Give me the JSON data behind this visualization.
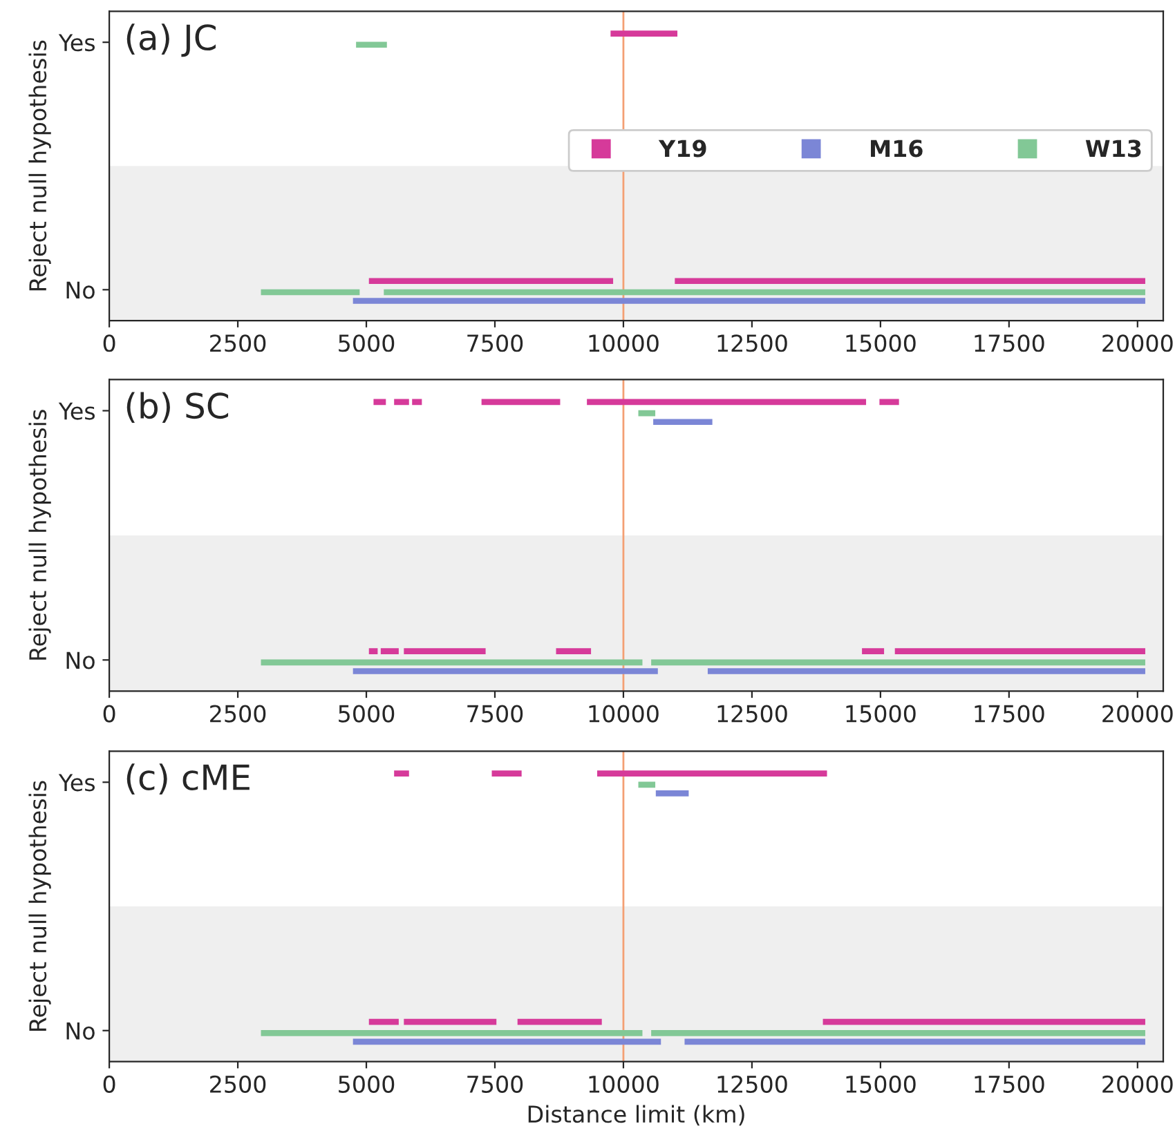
{
  "chart_data": [
    {
      "type": "bar",
      "orientation": "horizontal",
      "title": "(a) JC",
      "ylabel": "Reject null hypothesis",
      "categories": [
        "Yes",
        "No"
      ],
      "xlim": [
        0,
        20500
      ],
      "xticks": [
        0,
        2500,
        5000,
        7500,
        10000,
        12500,
        15000,
        17500,
        20000
      ],
      "legend": "right",
      "grid": false,
      "ref_lines": [
        {
          "axis": "x",
          "value": 10000,
          "color": "#f4a074"
        }
      ],
      "bands": [
        {
          "axis": "y",
          "from": "No",
          "to": "No",
          "color": "#efefef"
        }
      ],
      "series": [
        {
          "name": "Y19",
          "color": "#d63a9a",
          "base": [
            9750,
            5050
          ],
          "values": [
            1300,
            4750
          ]
        },
        {
          "color": "#d63a9a",
          "base": [
            null,
            11000
          ],
          "values": [
            null,
            9150
          ]
        },
        {
          "name": "M16",
          "color": "#7b86d6",
          "base": [
            null,
            4740
          ],
          "values": [
            null,
            15410
          ]
        },
        {
          "name": "W13",
          "color": "#82c896",
          "base": [
            4800,
            2950
          ],
          "values": [
            600,
            1920
          ]
        },
        {
          "color": "#82c896",
          "base": [
            null,
            5340
          ],
          "values": [
            null,
            14810
          ]
        }
      ]
    },
    {
      "type": "bar",
      "orientation": "horizontal",
      "title": "(b) SC",
      "ylabel": "Reject null hypothesis",
      "categories": [
        "Yes",
        "No"
      ],
      "xlim": [
        0,
        20500
      ],
      "xticks": [
        0,
        2500,
        5000,
        7500,
        10000,
        12500,
        15000,
        17500,
        20000
      ],
      "grid": false,
      "ref_lines": [
        {
          "axis": "x",
          "value": 10000,
          "color": "#f4a074"
        }
      ],
      "bands": [
        {
          "axis": "y",
          "from": "No",
          "to": "No",
          "color": "#efefef"
        }
      ],
      "series": [
        {
          "color": "#d63a9a",
          "base": [
            5140,
            5050
          ],
          "values": [
            240,
            170
          ]
        },
        {
          "color": "#d63a9a",
          "base": [
            5540,
            5280
          ],
          "values": [
            290,
            350
          ]
        },
        {
          "color": "#d63a9a",
          "base": [
            5890,
            5730
          ],
          "values": [
            190,
            1590
          ]
        },
        {
          "color": "#d63a9a",
          "base": [
            7240,
            8690
          ],
          "values": [
            1530,
            680
          ]
        },
        {
          "color": "#d63a9a",
          "base": [
            9290,
            14640
          ],
          "values": [
            5430,
            430
          ]
        },
        {
          "color": "#d63a9a",
          "base": [
            14980,
            15280
          ],
          "values": [
            380,
            4870
          ]
        },
        {
          "color": "#7b86d6",
          "base": [
            10580,
            4740
          ],
          "values": [
            1150,
            5930
          ]
        },
        {
          "color": "#7b86d6",
          "base": [
            null,
            11640
          ],
          "values": [
            null,
            8510
          ]
        },
        {
          "color": "#82c896",
          "base": [
            10290,
            2950
          ],
          "values": [
            330,
            7420
          ]
        },
        {
          "color": "#82c896",
          "base": [
            null,
            10540
          ],
          "values": [
            null,
            9610
          ]
        }
      ]
    },
    {
      "type": "bar",
      "orientation": "horizontal",
      "title": "(c) cME",
      "ylabel": "Reject null hypothesis",
      "xlabel": "Distance limit (km)",
      "categories": [
        "Yes",
        "No"
      ],
      "xlim": [
        0,
        20500
      ],
      "xticks": [
        0,
        2500,
        5000,
        7500,
        10000,
        12500,
        15000,
        17500,
        20000
      ],
      "grid": false,
      "ref_lines": [
        {
          "axis": "x",
          "value": 10000,
          "color": "#f4a074"
        }
      ],
      "bands": [
        {
          "axis": "y",
          "from": "No",
          "to": "No",
          "color": "#efefef"
        }
      ],
      "series": [
        {
          "color": "#d63a9a",
          "base": [
            5540,
            5050
          ],
          "values": [
            290,
            580
          ]
        },
        {
          "color": "#d63a9a",
          "base": [
            7440,
            5730
          ],
          "values": [
            580,
            1800
          ]
        },
        {
          "color": "#d63a9a",
          "base": [
            9490,
            7940
          ],
          "values": [
            4470,
            1640
          ]
        },
        {
          "color": "#d63a9a",
          "base": [
            null,
            13880
          ],
          "values": [
            null,
            6270
          ]
        },
        {
          "color": "#7b86d6",
          "base": [
            10630,
            4740
          ],
          "values": [
            640,
            5990
          ]
        },
        {
          "color": "#7b86d6",
          "base": [
            null,
            11190
          ],
          "values": [
            null,
            8960
          ]
        },
        {
          "color": "#82c896",
          "base": [
            10290,
            2950
          ],
          "values": [
            330,
            7420
          ]
        },
        {
          "color": "#82c896",
          "base": [
            null,
            10540
          ],
          "values": [
            null,
            9610
          ]
        }
      ]
    }
  ]
}
